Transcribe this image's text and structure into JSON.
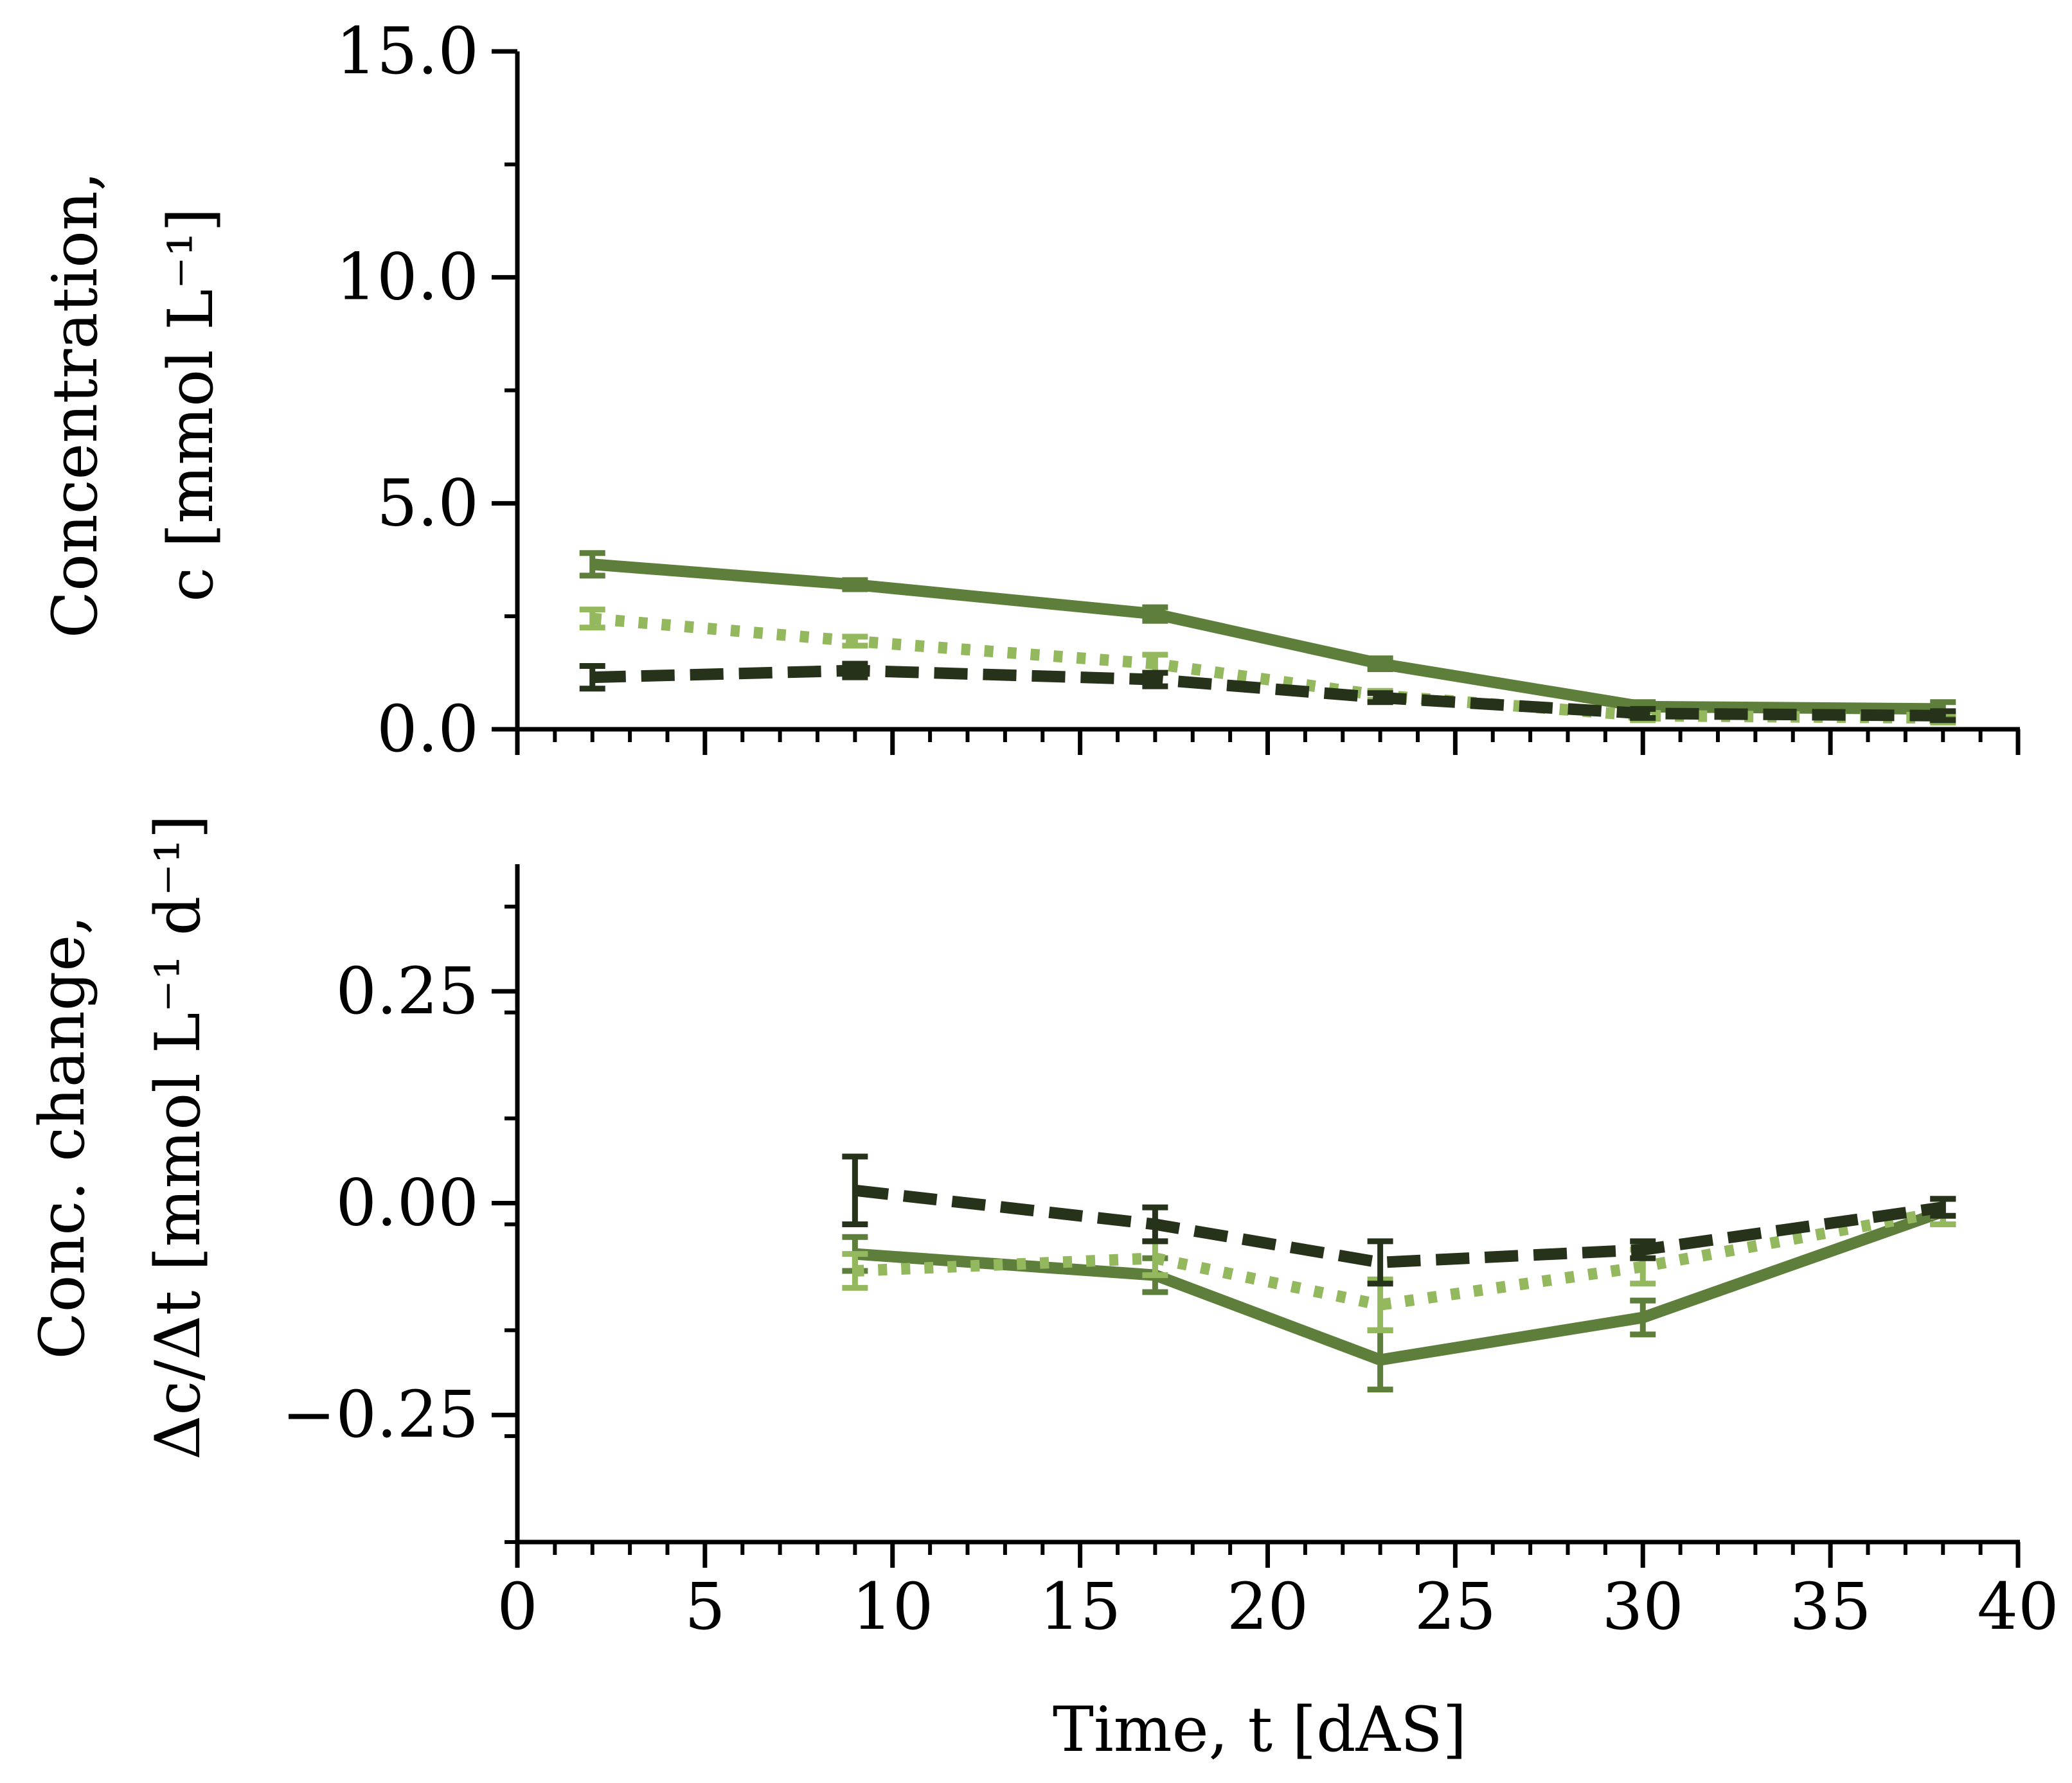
{
  "chart_data": [
    {
      "type": "line",
      "id": "top",
      "ylabel_line1": "Concentration,",
      "ylabel_line2": "c [mmol L⁻¹]",
      "xlim": [
        0,
        40
      ],
      "ylim": [
        0,
        15
      ],
      "yticks": [
        0,
        5,
        10,
        15
      ],
      "ytick_labels": [
        "0.0",
        "5.0",
        "10.0",
        "15.0"
      ],
      "x": [
        2,
        9,
        17,
        23,
        30,
        38
      ],
      "series": [
        {
          "style": "solid",
          "color": "#5e7f3b",
          "values": [
            3.65,
            3.2,
            2.55,
            1.45,
            0.5,
            0.45
          ],
          "errors": [
            0.25,
            0.1,
            0.15,
            0.12,
            0.1,
            0.15
          ]
        },
        {
          "style": "dotted",
          "color": "#93b85e",
          "values": [
            2.45,
            1.95,
            1.45,
            0.75,
            0.3,
            0.25
          ],
          "errors": [
            0.2,
            0.1,
            0.2,
            0.1,
            0.1,
            0.1
          ]
        },
        {
          "style": "dashed",
          "color": "#27321a",
          "values": [
            1.15,
            1.3,
            1.1,
            0.7,
            0.35,
            0.3
          ],
          "errors": [
            0.25,
            0.15,
            0.15,
            0.1,
            0.1,
            0.1
          ]
        }
      ]
    },
    {
      "type": "line",
      "id": "bottom",
      "ylabel_line1": "Conc. change,",
      "ylabel_line2": "Δc/Δt [mmol L⁻¹ d⁻¹]",
      "xlabel": "Time, t [dAS]",
      "xlim": [
        0,
        40
      ],
      "ylim": [
        -0.4,
        0.4
      ],
      "yticks": [
        -0.25,
        0,
        0.25
      ],
      "ytick_labels": [
        "−0.25",
        "0.00",
        "0.25"
      ],
      "xticks": [
        0,
        5,
        10,
        15,
        20,
        25,
        30,
        35,
        40
      ],
      "xtick_labels": [
        "0",
        "5",
        "10",
        "15",
        "20",
        "25",
        "30",
        "35",
        "40"
      ],
      "x": [
        9,
        17,
        23,
        30,
        38
      ],
      "series": [
        {
          "style": "solid",
          "color": "#5e7f3b",
          "values": [
            -0.06,
            -0.085,
            -0.185,
            -0.135,
            -0.01
          ],
          "errors": [
            0.02,
            0.02,
            0.035,
            0.02,
            0.015
          ]
        },
        {
          "style": "dotted",
          "color": "#93b85e",
          "values": [
            -0.08,
            -0.065,
            -0.12,
            -0.075,
            -0.01
          ],
          "errors": [
            0.02,
            0.02,
            0.03,
            0.02,
            0.015
          ]
        },
        {
          "style": "dashed",
          "color": "#27321a",
          "values": [
            0.015,
            -0.025,
            -0.07,
            -0.055,
            -0.005
          ],
          "errors": [
            0.04,
            0.02,
            0.025,
            0.01,
            0.01
          ]
        }
      ]
    }
  ]
}
